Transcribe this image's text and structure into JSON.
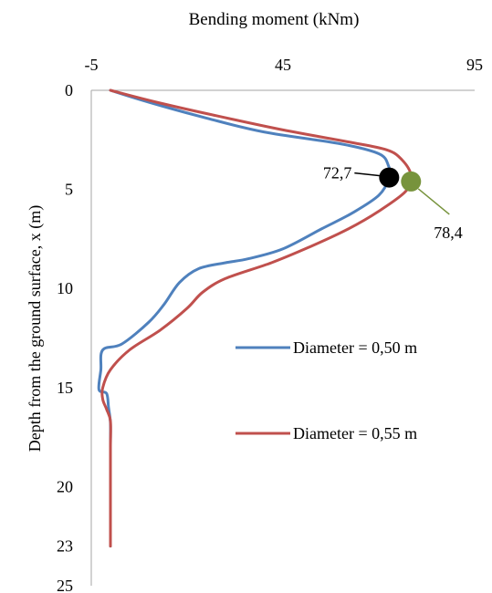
{
  "chart_data": {
    "type": "line",
    "title": "Bending moment (kNm)",
    "xlabel": "Bending moment (kNm)",
    "ylabel": "Depth from the ground surface, x (m)",
    "xlim": [
      -5,
      95
    ],
    "ylim": [
      0,
      25
    ],
    "x_ticks": [
      "-5",
      "45",
      "95"
    ],
    "y_ticks": [
      "0",
      "5",
      "10",
      "15",
      "20",
      "23",
      "25"
    ],
    "x_axis_position": "top",
    "y_axis_inverted": true,
    "grid": false,
    "legend_position": "right",
    "series": [
      {
        "name": "Diameter = 0,50 m",
        "color": "#4f81bd",
        "points": [
          [
            0,
            0
          ],
          [
            10,
            0.6
          ],
          [
            25,
            1.4
          ],
          [
            40,
            2.1
          ],
          [
            60,
            2.7
          ],
          [
            70,
            3.2
          ],
          [
            72.5,
            3.8
          ],
          [
            72.7,
            4.4
          ],
          [
            70,
            5.3
          ],
          [
            63,
            6.2
          ],
          [
            55,
            7.0
          ],
          [
            45,
            8.0
          ],
          [
            36,
            8.5
          ],
          [
            30,
            8.7
          ],
          [
            23,
            9.0
          ],
          [
            18,
            9.7
          ],
          [
            14,
            10.8
          ],
          [
            10,
            11.7
          ],
          [
            3,
            12.8
          ],
          [
            -2,
            13.1
          ],
          [
            -2.5,
            14.1
          ],
          [
            -3,
            15.1
          ],
          [
            -1,
            15.3
          ],
          [
            -0.5,
            16.0
          ],
          [
            0,
            16.8
          ],
          [
            0,
            18
          ],
          [
            0,
            20
          ],
          [
            0,
            23
          ]
        ]
      },
      {
        "name": "Diameter = 0,55 m",
        "color": "#c0504d",
        "points": [
          [
            0,
            0
          ],
          [
            12,
            0.6
          ],
          [
            28,
            1.3
          ],
          [
            45,
            2.0
          ],
          [
            62,
            2.6
          ],
          [
            72,
            3.0
          ],
          [
            76,
            3.5
          ],
          [
            78.4,
            4.3
          ],
          [
            77,
            5.1
          ],
          [
            70,
            6.1
          ],
          [
            62,
            7.0
          ],
          [
            52,
            7.9
          ],
          [
            42,
            8.7
          ],
          [
            30,
            9.5
          ],
          [
            24,
            10.2
          ],
          [
            20,
            11.0
          ],
          [
            13,
            12.1
          ],
          [
            5,
            13.1
          ],
          [
            0,
            14.1
          ],
          [
            -2,
            15.0
          ],
          [
            -2,
            15.6
          ],
          [
            -1,
            16.1
          ],
          [
            0,
            16.7
          ],
          [
            0,
            18
          ],
          [
            0,
            20
          ],
          [
            0,
            23
          ]
        ]
      }
    ],
    "annotations": [
      {
        "label": "72,7",
        "x": 72.7,
        "y": 4.4,
        "marker_color": "#000000"
      },
      {
        "label": "78,4",
        "x": 78.4,
        "y": 4.6,
        "marker_color": "#77933c"
      }
    ]
  }
}
